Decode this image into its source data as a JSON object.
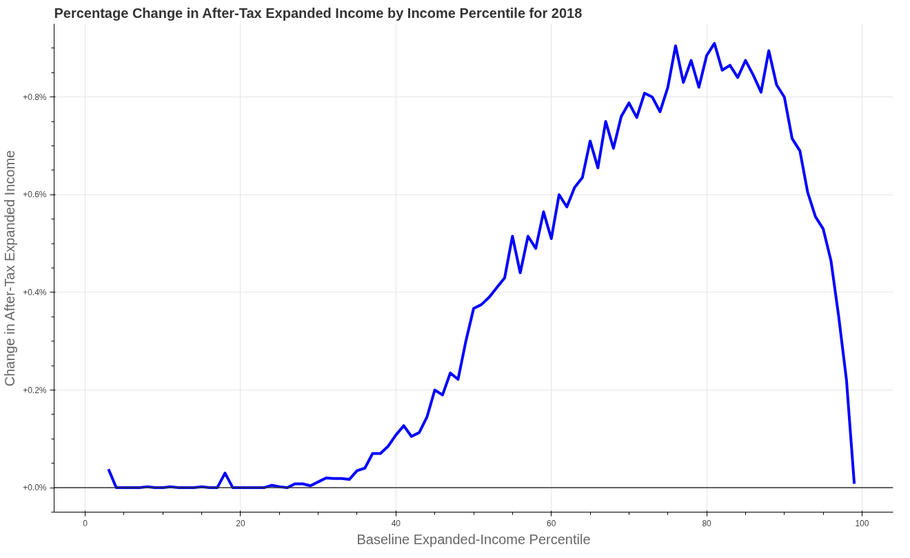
{
  "chart_data": {
    "type": "line",
    "title": "Percentage Change in After-Tax Expanded Income by Income Percentile for 2018",
    "xlabel": "Baseline Expanded-Income Percentile",
    "ylabel": "Change in After-Tax Expanded Income",
    "x": [
      3,
      4,
      5,
      6,
      7,
      8,
      9,
      10,
      11,
      12,
      13,
      14,
      15,
      16,
      17,
      18,
      19,
      20,
      21,
      22,
      23,
      24,
      25,
      26,
      27,
      28,
      29,
      30,
      31,
      32,
      33,
      34,
      35,
      36,
      37,
      38,
      39,
      40,
      41,
      42,
      43,
      44,
      45,
      46,
      47,
      48,
      49,
      50,
      51,
      52,
      53,
      54,
      55,
      56,
      57,
      58,
      59,
      60,
      61,
      62,
      63,
      64,
      65,
      66,
      67,
      68,
      69,
      70,
      71,
      72,
      73,
      74,
      75,
      76,
      77,
      78,
      79,
      80,
      81,
      82,
      83,
      84,
      85,
      86,
      87,
      88,
      89,
      90,
      91,
      92,
      93,
      94,
      95,
      96,
      97,
      98,
      99
    ],
    "series": [
      {
        "color": "#0000ff",
        "values": [
          0.038,
          0,
          0,
          0,
          0,
          0.002,
          0,
          0,
          0.002,
          0,
          0,
          0,
          0.002,
          0,
          0,
          0.03,
          0,
          0,
          0,
          0,
          0,
          0.005,
          0.002,
          0,
          0.008,
          0.008,
          0.004,
          0.012,
          0.02,
          0.019,
          0.019,
          0.017,
          0.035,
          0.04,
          0.07,
          0.07,
          0.085,
          0.108,
          0.127,
          0.105,
          0.113,
          0.145,
          0.2,
          0.19,
          0.235,
          0.222,
          0.3,
          0.367,
          0.375,
          0.39,
          0.41,
          0.43,
          0.515,
          0.44,
          0.515,
          0.49,
          0.565,
          0.51,
          0.6,
          0.575,
          0.615,
          0.635,
          0.71,
          0.655,
          0.75,
          0.695,
          0.76,
          0.788,
          0.758,
          0.808,
          0.8,
          0.77,
          0.82,
          0.905,
          0.83,
          0.875,
          0.82,
          0.885,
          0.91,
          0.855,
          0.865,
          0.84,
          0.875,
          0.845,
          0.81,
          0.895,
          0.825,
          0.8,
          0.715,
          0.69,
          0.605,
          0.555,
          0.53,
          0.465,
          0.35,
          0.22,
          0.008
        ]
      }
    ],
    "xlim": [
      -4,
      104
    ],
    "ylim": [
      -0.05,
      0.95
    ],
    "xticks": [
      0,
      20,
      40,
      60,
      80,
      100
    ],
    "yticks": [
      {
        "value": 0,
        "label": "+0.0%"
      },
      {
        "value": 0.2,
        "label": "+0.2%"
      },
      {
        "value": 0.4,
        "label": "+0.4%"
      },
      {
        "value": 0.6,
        "label": "+0.6%"
      },
      {
        "value": 0.8,
        "label": "+0.8%"
      }
    ],
    "ref_lines": [
      {
        "axis": "y",
        "value": 0,
        "color": "#333333"
      }
    ],
    "grid": true,
    "line_style": "solid"
  }
}
